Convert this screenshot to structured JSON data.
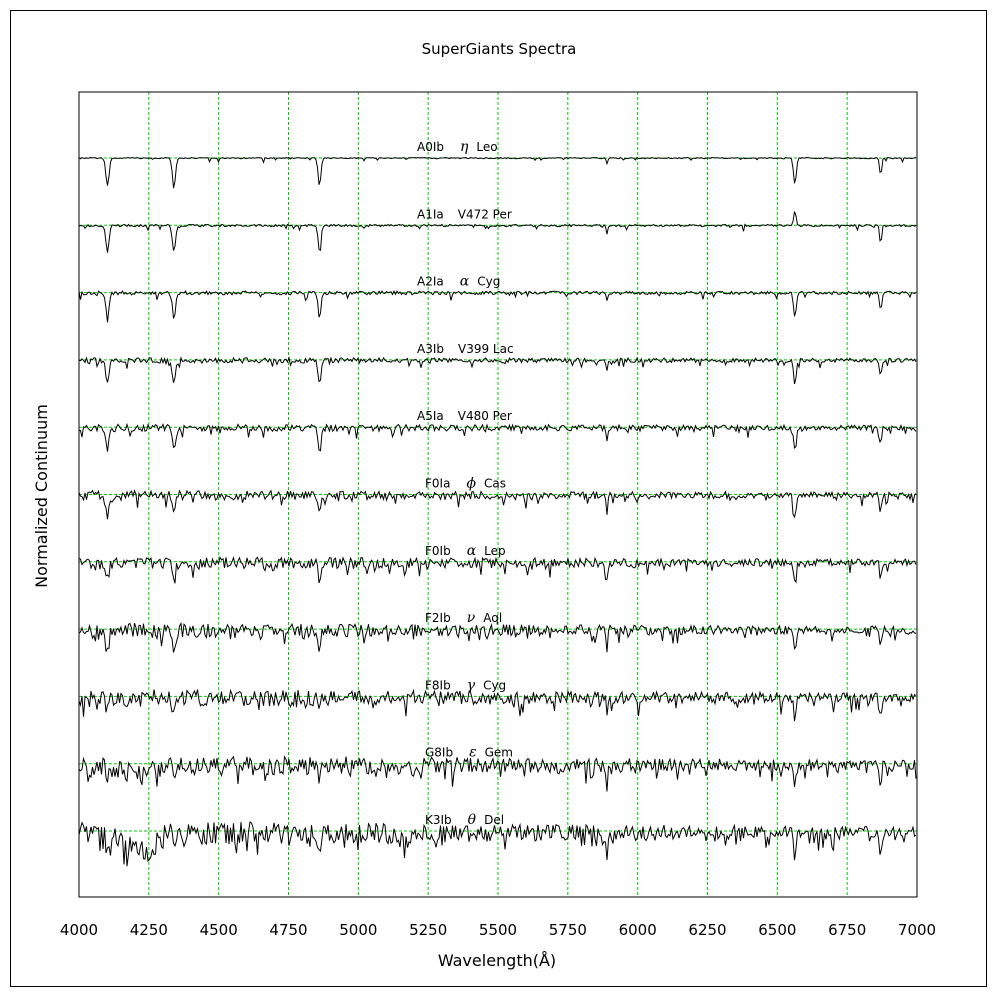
{
  "chart_data": {
    "type": "line",
    "title": "SuperGiants Spectra",
    "xlabel": "Wavelength(Å)",
    "ylabel": "Normalized Continuum",
    "xlim": [
      4000,
      7000
    ],
    "x_ticks": [
      "4000",
      "4250",
      "4500",
      "4750",
      "5000",
      "5250",
      "5500",
      "5750",
      "6000",
      "6250",
      "6500",
      "6750",
      "7000"
    ],
    "grid": true,
    "grid_color": "#00cc00",
    "line_color": "#000000",
    "series": [
      {
        "name": "A0Ib",
        "star": "Leo",
        "greek": "η"
      },
      {
        "name": "A1Ia",
        "star": "V472 Per",
        "greek": ""
      },
      {
        "name": "A2Ia",
        "star": "Cyg",
        "greek": "α"
      },
      {
        "name": "A3Ib",
        "star": "V399 Lac",
        "greek": ""
      },
      {
        "name": "A5Ia",
        "star": "V480 Per",
        "greek": ""
      },
      {
        "name": "F0Ia",
        "star": "Cas",
        "greek": "ϕ"
      },
      {
        "name": "F0Ib",
        "star": "Lep",
        "greek": "α"
      },
      {
        "name": "F2Ib",
        "star": "Aql",
        "greek": "ν"
      },
      {
        "name": "F8Ib",
        "star": "Cyg",
        "greek": "γ"
      },
      {
        "name": "G8Ib",
        "star": "Gem",
        "greek": "ε"
      },
      {
        "name": "K3Ib",
        "star": "Del",
        "greek": "θ"
      }
    ]
  }
}
